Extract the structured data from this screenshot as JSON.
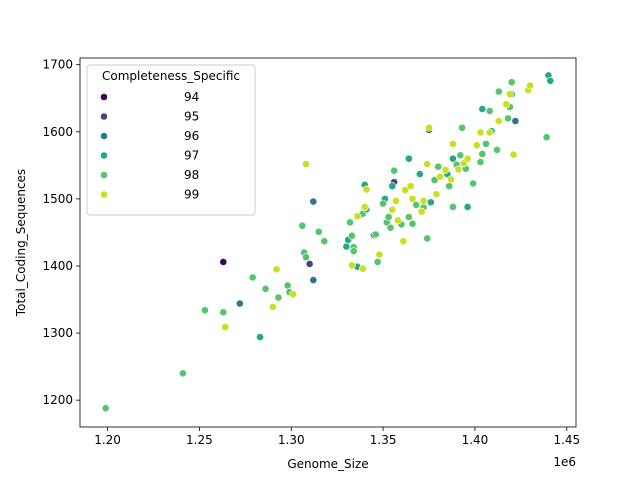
{
  "chart_data": {
    "type": "scatter",
    "title": "",
    "xlabel": "Genome_Size",
    "ylabel": "Total_Coding_Sequences",
    "x_offset_label": "1e6",
    "x_scale": 1000000,
    "xlim": [
      1.185,
      1.455
    ],
    "ylim": [
      1160,
      1710
    ],
    "x_ticks": [
      1.2,
      1.25,
      1.3,
      1.35,
      1.4,
      1.45
    ],
    "x_tick_labels": [
      "1.20",
      "1.25",
      "1.30",
      "1.35",
      "1.40",
      "1.45"
    ],
    "y_ticks": [
      1200,
      1300,
      1400,
      1500,
      1600,
      1700
    ],
    "y_tick_labels": [
      "1200",
      "1300",
      "1400",
      "1500",
      "1600",
      "1700"
    ],
    "grid": false,
    "legend": {
      "title": "Completeness_Specific",
      "placement": "upper-left",
      "entries": [
        {
          "label": "94",
          "color": "#440154"
        },
        {
          "label": "95",
          "color": "#414487"
        },
        {
          "label": "96",
          "color": "#2a788e"
        },
        {
          "label": "97",
          "color": "#22a884"
        },
        {
          "label": "98",
          "color": "#54c568"
        },
        {
          "label": "99",
          "color": "#c8e020"
        }
      ]
    },
    "series": [
      {
        "name": "94",
        "color": "#440154",
        "points": [
          [
            1.263,
            1406
          ]
        ]
      },
      {
        "name": "95",
        "color": "#414487",
        "points": [
          [
            1.31,
            1403
          ],
          [
            1.356,
            1525
          ],
          [
            1.375,
            1603
          ]
        ]
      },
      {
        "name": "96",
        "color": "#2a788e",
        "points": [
          [
            1.272,
            1344
          ],
          [
            1.312,
            1496
          ],
          [
            1.312,
            1379
          ],
          [
            1.422,
            1616
          ]
        ]
      },
      {
        "name": "97",
        "color": "#22a884",
        "points": [
          [
            1.283,
            1294
          ],
          [
            1.33,
            1429
          ],
          [
            1.331,
            1439
          ],
          [
            1.336,
            1399
          ],
          [
            1.337,
            1475
          ],
          [
            1.34,
            1521
          ],
          [
            1.345,
            1446
          ],
          [
            1.351,
            1500
          ],
          [
            1.355,
            1519
          ],
          [
            1.364,
            1560
          ],
          [
            1.37,
            1537
          ],
          [
            1.376,
            1495
          ],
          [
            1.385,
            1537
          ],
          [
            1.388,
            1560
          ],
          [
            1.396,
            1488
          ],
          [
            1.404,
            1634
          ],
          [
            1.409,
            1601
          ],
          [
            1.42,
            1656
          ],
          [
            1.44,
            1684
          ],
          [
            1.441,
            1676
          ]
        ]
      },
      {
        "name": "98",
        "color": "#54c568",
        "points": [
          [
            1.199,
            1188
          ],
          [
            1.241,
            1240
          ],
          [
            1.253,
            1334
          ],
          [
            1.263,
            1331
          ],
          [
            1.279,
            1383
          ],
          [
            1.286,
            1366
          ],
          [
            1.293,
            1353
          ],
          [
            1.298,
            1371
          ],
          [
            1.299,
            1361
          ],
          [
            1.306,
            1460
          ],
          [
            1.307,
            1420
          ],
          [
            1.308,
            1413
          ],
          [
            1.315,
            1451
          ],
          [
            1.318,
            1437
          ],
          [
            1.332,
            1465
          ],
          [
            1.333,
            1445
          ],
          [
            1.334,
            1428
          ],
          [
            1.334,
            1422
          ],
          [
            1.339,
            1478
          ],
          [
            1.341,
            1484
          ],
          [
            1.346,
            1447
          ],
          [
            1.347,
            1406
          ],
          [
            1.35,
            1493
          ],
          [
            1.352,
            1465
          ],
          [
            1.353,
            1473
          ],
          [
            1.354,
            1457
          ],
          [
            1.356,
            1542
          ],
          [
            1.36,
            1462
          ],
          [
            1.364,
            1473
          ],
          [
            1.366,
            1463
          ],
          [
            1.368,
            1491
          ],
          [
            1.372,
            1487
          ],
          [
            1.374,
            1441
          ],
          [
            1.378,
            1528
          ],
          [
            1.38,
            1548
          ],
          [
            1.386,
            1519
          ],
          [
            1.388,
            1488
          ],
          [
            1.39,
            1551
          ],
          [
            1.392,
            1565
          ],
          [
            1.393,
            1606
          ],
          [
            1.395,
            1545
          ],
          [
            1.399,
            1523
          ],
          [
            1.403,
            1555
          ],
          [
            1.404,
            1567
          ],
          [
            1.406,
            1582
          ],
          [
            1.408,
            1631
          ],
          [
            1.412,
            1573
          ],
          [
            1.413,
            1660
          ],
          [
            1.418,
            1620
          ],
          [
            1.419,
            1637
          ],
          [
            1.42,
            1674
          ],
          [
            1.439,
            1592
          ]
        ]
      },
      {
        "name": "99",
        "color": "#c8e020",
        "points": [
          [
            1.264,
            1309
          ],
          [
            1.29,
            1339
          ],
          [
            1.292,
            1395
          ],
          [
            1.301,
            1358
          ],
          [
            1.308,
            1552
          ],
          [
            1.333,
            1401
          ],
          [
            1.336,
            1474
          ],
          [
            1.339,
            1396
          ],
          [
            1.34,
            1488
          ],
          [
            1.341,
            1514
          ],
          [
            1.348,
            1417
          ],
          [
            1.355,
            1484
          ],
          [
            1.357,
            1497
          ],
          [
            1.358,
            1468
          ],
          [
            1.361,
            1437
          ],
          [
            1.362,
            1513
          ],
          [
            1.365,
            1519
          ],
          [
            1.366,
            1500
          ],
          [
            1.371,
            1481
          ],
          [
            1.372,
            1497
          ],
          [
            1.374,
            1552
          ],
          [
            1.375,
            1606
          ],
          [
            1.379,
            1507
          ],
          [
            1.381,
            1533
          ],
          [
            1.384,
            1543
          ],
          [
            1.387,
            1529
          ],
          [
            1.388,
            1582
          ],
          [
            1.391,
            1544
          ],
          [
            1.394,
            1553
          ],
          [
            1.396,
            1560
          ],
          [
            1.401,
            1580
          ],
          [
            1.403,
            1599
          ],
          [
            1.408,
            1599
          ],
          [
            1.413,
            1616
          ],
          [
            1.417,
            1641
          ],
          [
            1.419,
            1656
          ],
          [
            1.421,
            1566
          ],
          [
            1.429,
            1662
          ],
          [
            1.43,
            1669
          ]
        ]
      }
    ]
  }
}
